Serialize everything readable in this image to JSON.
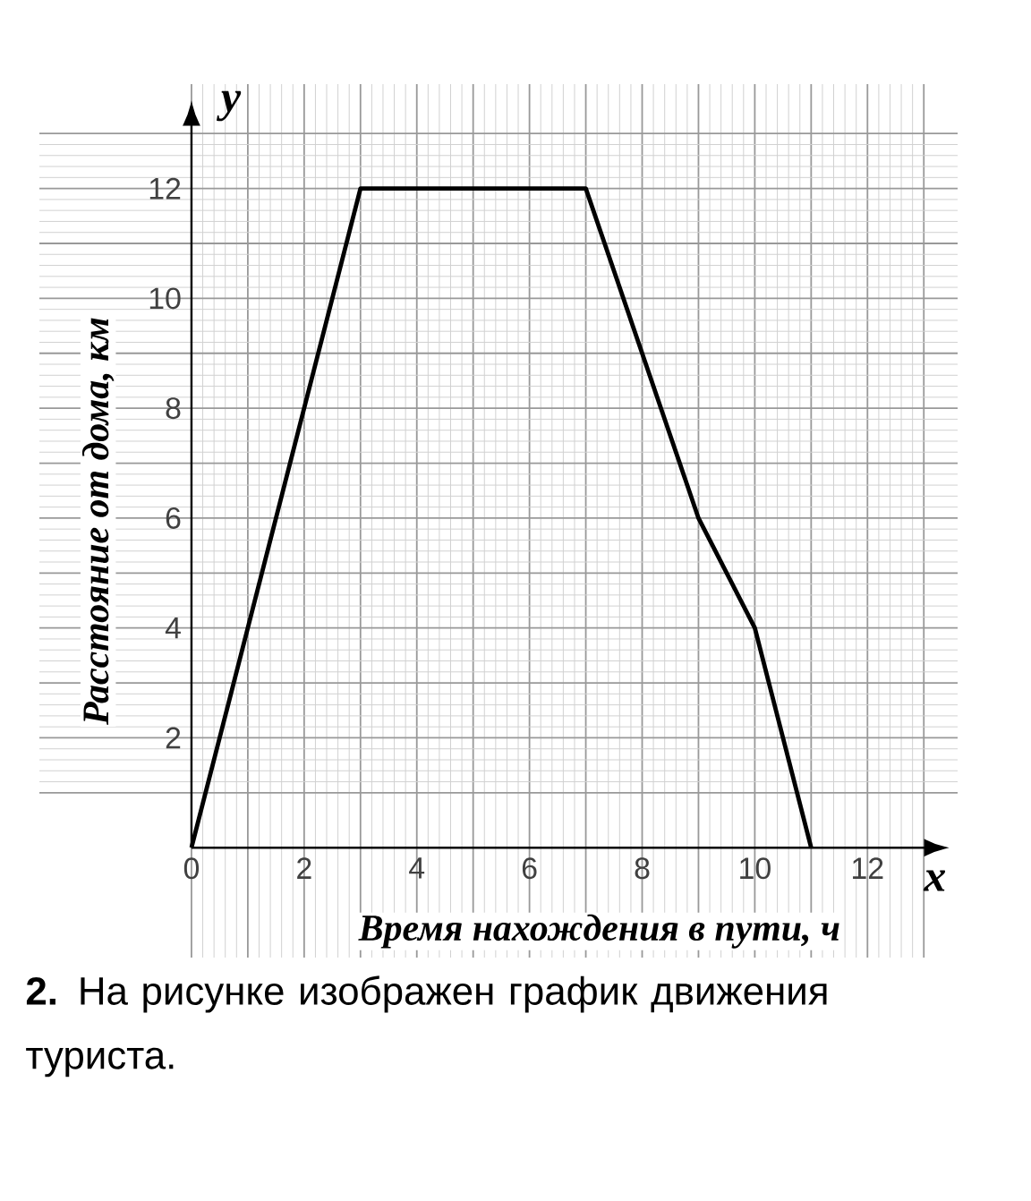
{
  "chart_data": {
    "type": "line",
    "xlabel": "Время нахождения в пути, ч",
    "ylabel": "Расстояние от дома, км",
    "x": [
      0,
      3,
      7,
      9,
      10,
      11
    ],
    "series": [
      {
        "color": "#000000",
        "values": [
          0,
          12,
          12,
          6,
          4,
          0
        ]
      }
    ],
    "xlim": [
      -2.7,
      13.6
    ],
    "ylim": [
      -2,
      13.9
    ],
    "xticks": [
      0,
      {
        "value": 1,
        "label": null
      },
      2,
      {
        "value": 3,
        "label": null
      },
      4,
      {
        "value": 5,
        "label": null
      },
      6,
      {
        "value": 7,
        "label": null
      },
      8,
      {
        "value": 9,
        "label": null
      },
      10,
      {
        "value": 11,
        "label": null
      },
      12,
      {
        "value": 13,
        "label": null
      }
    ],
    "yticks": [
      {
        "value": 1,
        "label": null
      },
      2,
      {
        "value": 3,
        "label": null
      },
      4,
      {
        "value": 5,
        "label": null
      },
      6,
      {
        "value": 7,
        "label": null
      },
      8,
      {
        "value": 9,
        "label": null
      },
      10,
      {
        "value": 11,
        "label": null
      },
      12,
      {
        "value": 13,
        "label": null
      }
    ],
    "grid": true,
    "annotations": [
      "y",
      "x",
      "**2.** На рисунке изображен график движения туриста."
    ]
  }
}
